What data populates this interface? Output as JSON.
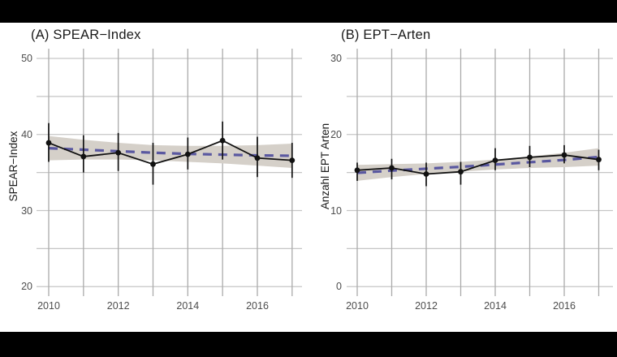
{
  "figure": {
    "background": "#000000",
    "canvas_background": "#ffffff"
  },
  "style": {
    "grid_vertical_color": "#ababab",
    "grid_horizontal_color": "#c6c6c6",
    "ribbon_color": "#d5d0c9",
    "trend_color": "#5a58a0",
    "data_color": "#111111",
    "tick_label_color": "#4d4d4d",
    "title_color": "#1a1a1a"
  },
  "chart_data": [
    {
      "type": "line",
      "panel": "A",
      "title": "(A) SPEAR−Index",
      "ylabel": "SPEAR−Index",
      "x": [
        2010,
        2011,
        2012,
        2013,
        2014,
        2015,
        2016,
        2017
      ],
      "values": [
        38.9,
        37.1,
        37.6,
        36.1,
        37.4,
        39.2,
        36.9,
        36.6
      ],
      "error_low": [
        36.4,
        35.0,
        35.2,
        33.4,
        35.4,
        36.7,
        34.4,
        34.3
      ],
      "error_high": [
        41.5,
        39.9,
        40.2,
        38.9,
        39.6,
        41.7,
        39.7,
        38.9
      ],
      "trend": [
        38.2,
        38.0,
        37.8,
        37.6,
        37.45,
        37.35,
        37.25,
        37.2
      ],
      "ribbon_upper": [
        39.8,
        39.3,
        38.9,
        38.6,
        38.5,
        38.5,
        38.6,
        38.8
      ],
      "ribbon_lower": [
        36.6,
        36.7,
        36.7,
        36.6,
        36.4,
        36.2,
        35.9,
        35.6
      ],
      "ylim": [
        18.5,
        51.5
      ],
      "grid_interval": 5,
      "yticks": [
        50,
        40,
        30,
        20
      ],
      "ytick_labels": [
        "50",
        "40",
        "30",
        "20"
      ],
      "xticks": [
        2010,
        2012,
        2014,
        2016
      ],
      "xtick_labels": [
        "2010",
        "2012",
        "2014",
        "2016"
      ],
      "legend": "none",
      "grid": "on"
    },
    {
      "type": "line",
      "panel": "B",
      "title": "(B) EPT−Arten",
      "ylabel": "Anzahl EPT Arten",
      "x": [
        2010,
        2011,
        2012,
        2013,
        2014,
        2015,
        2016,
        2017
      ],
      "values": [
        15.3,
        15.6,
        14.8,
        15.1,
        16.6,
        17.0,
        17.3,
        16.7
      ],
      "error_low": [
        13.9,
        14.1,
        13.2,
        13.4,
        15.3,
        15.7,
        16.2,
        15.3
      ],
      "error_high": [
        16.3,
        16.8,
        16.3,
        16.4,
        18.2,
        18.5,
        18.6,
        18.0
      ],
      "trend": [
        14.95,
        15.25,
        15.5,
        15.75,
        16.05,
        16.35,
        16.65,
        17.05
      ],
      "ribbon_upper": [
        16.0,
        16.1,
        16.2,
        16.4,
        16.7,
        17.1,
        17.6,
        18.2
      ],
      "ribbon_lower": [
        13.9,
        14.4,
        14.8,
        15.1,
        15.4,
        15.6,
        15.7,
        15.9
      ],
      "ylim": [
        -1.5,
        31.5
      ],
      "grid_interval": 5,
      "yticks": [
        30,
        20,
        10,
        0
      ],
      "ytick_labels": [
        "30",
        "20",
        "10",
        "0"
      ],
      "xticks": [
        2010,
        2012,
        2014,
        2016
      ],
      "xtick_labels": [
        "2010",
        "2012",
        "2014",
        "2016"
      ],
      "legend": "none",
      "grid": "on"
    }
  ]
}
